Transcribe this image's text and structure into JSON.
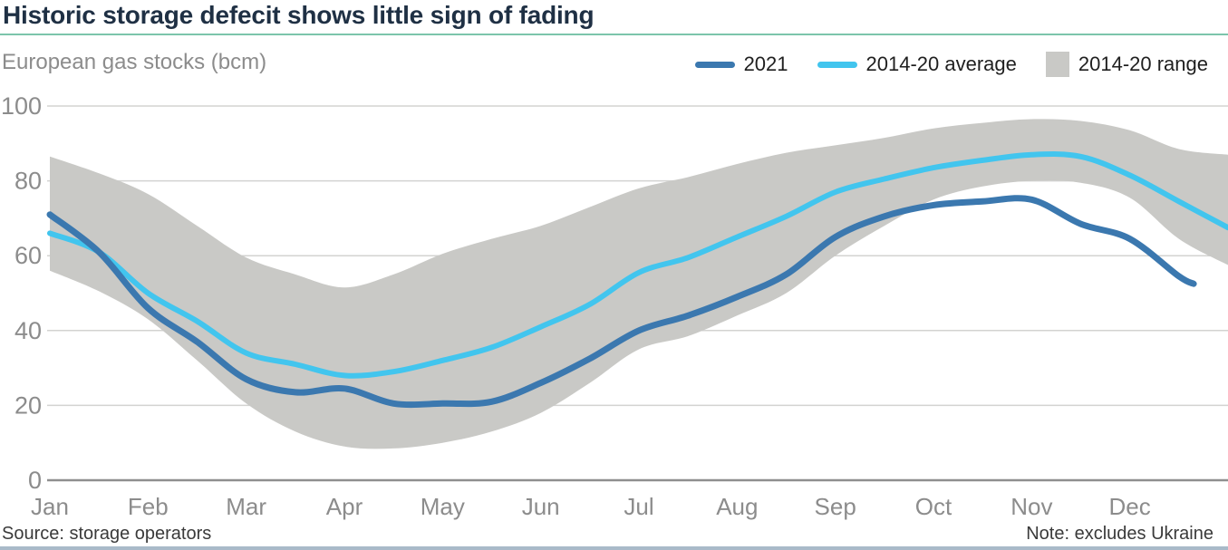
{
  "chart_data": {
    "type": "line",
    "title": "Historic storage defecit shows little sign of fading",
    "subtitle": "European gas stocks (bcm)",
    "source": "Source: storage operators",
    "note": "Note: excludes Ukraine",
    "x_tick_labels": [
      "Jan",
      "Feb",
      "Mar",
      "Apr",
      "May",
      "Jun",
      "Jul",
      "Aug",
      "Sep",
      "Oct",
      "Nov",
      "Dec"
    ],
    "y_ticks": [
      0,
      20,
      40,
      60,
      80,
      100
    ],
    "ylim": [
      0,
      100
    ],
    "xlabel": "",
    "ylabel": "European gas stocks (bcm)",
    "grid": "horizontal gridlines at each y tick, darker baseline at 0",
    "legend_position": "top-right",
    "colors": {
      "band": "#c9c9c6",
      "average": "#42c5ee",
      "y2021": "#3b78af",
      "accent_rule": "#7cc5ab",
      "axis": "#8f8f8f",
      "gridline": "#d3d3d1",
      "title": "#1f3044",
      "muted_text": "#8c8c8c",
      "footer_text": "#3a3a3a",
      "bottom_rule": "#a9bac9"
    },
    "legend": [
      {
        "label": "2021",
        "swatch": "line",
        "color": "#3b78af"
      },
      {
        "label": "2014-20 average",
        "swatch": "line",
        "color": "#42c5ee"
      },
      {
        "label": "2014-20 range",
        "swatch": "box",
        "color": "#c9c9c6"
      }
    ],
    "series": [
      {
        "name": "2014-20 range",
        "type": "band",
        "color": "#c9c9c6",
        "t_months": [
          0,
          0.5,
          1,
          1.5,
          2,
          2.5,
          3,
          3.5,
          4,
          4.5,
          5,
          5.5,
          6,
          6.5,
          7,
          7.5,
          8,
          8.5,
          9,
          9.5,
          10,
          10.5,
          11,
          11.5,
          12
        ],
        "top": [
          86.5,
          82,
          76.5,
          68,
          59.5,
          55,
          51.5,
          55,
          60.5,
          64.5,
          68,
          73,
          78,
          81,
          84.5,
          87.5,
          89.5,
          91.5,
          94,
          95.5,
          96.5,
          96,
          93.5,
          88.5,
          87
        ],
        "bottom": [
          56,
          50.5,
          43,
          32,
          20.5,
          13,
          9,
          8.5,
          10,
          13,
          18,
          26,
          35,
          38.5,
          44,
          50,
          60,
          68,
          75,
          78.5,
          80,
          79.5,
          75.5,
          64.5,
          57.5
        ]
      },
      {
        "name": "2014-20 average",
        "type": "line",
        "color": "#42c5ee",
        "t_months": [
          0,
          0.5,
          1,
          1.5,
          2,
          2.5,
          3,
          3.5,
          4,
          4.5,
          5,
          5.5,
          6,
          6.5,
          7,
          7.5,
          8,
          8.5,
          9,
          9.5,
          10,
          10.5,
          11,
          11.5,
          12
        ],
        "values": [
          66,
          61,
          50,
          42.5,
          34,
          31,
          28,
          29,
          32,
          35.5,
          41,
          47,
          55.5,
          59.5,
          65,
          70.5,
          77,
          80.5,
          83.5,
          85.5,
          87,
          86.5,
          81.5,
          74.5,
          67.5
        ]
      },
      {
        "name": "2021",
        "type": "line",
        "color": "#3b78af",
        "t_months": [
          0,
          0.5,
          1,
          1.5,
          2,
          2.5,
          3,
          3.5,
          4,
          4.5,
          5,
          5.5,
          6,
          6.5,
          7,
          7.5,
          8,
          8.5,
          9,
          9.5,
          10,
          10.5,
          11,
          11.5,
          11.65
        ],
        "values": [
          71,
          61,
          46,
          37,
          27,
          23.5,
          24.5,
          20.5,
          20.5,
          21,
          26,
          32.5,
          40,
          44,
          49,
          55,
          65,
          70.5,
          73.5,
          74.5,
          75,
          68.5,
          64.5,
          54.5,
          52.5
        ]
      }
    ]
  }
}
